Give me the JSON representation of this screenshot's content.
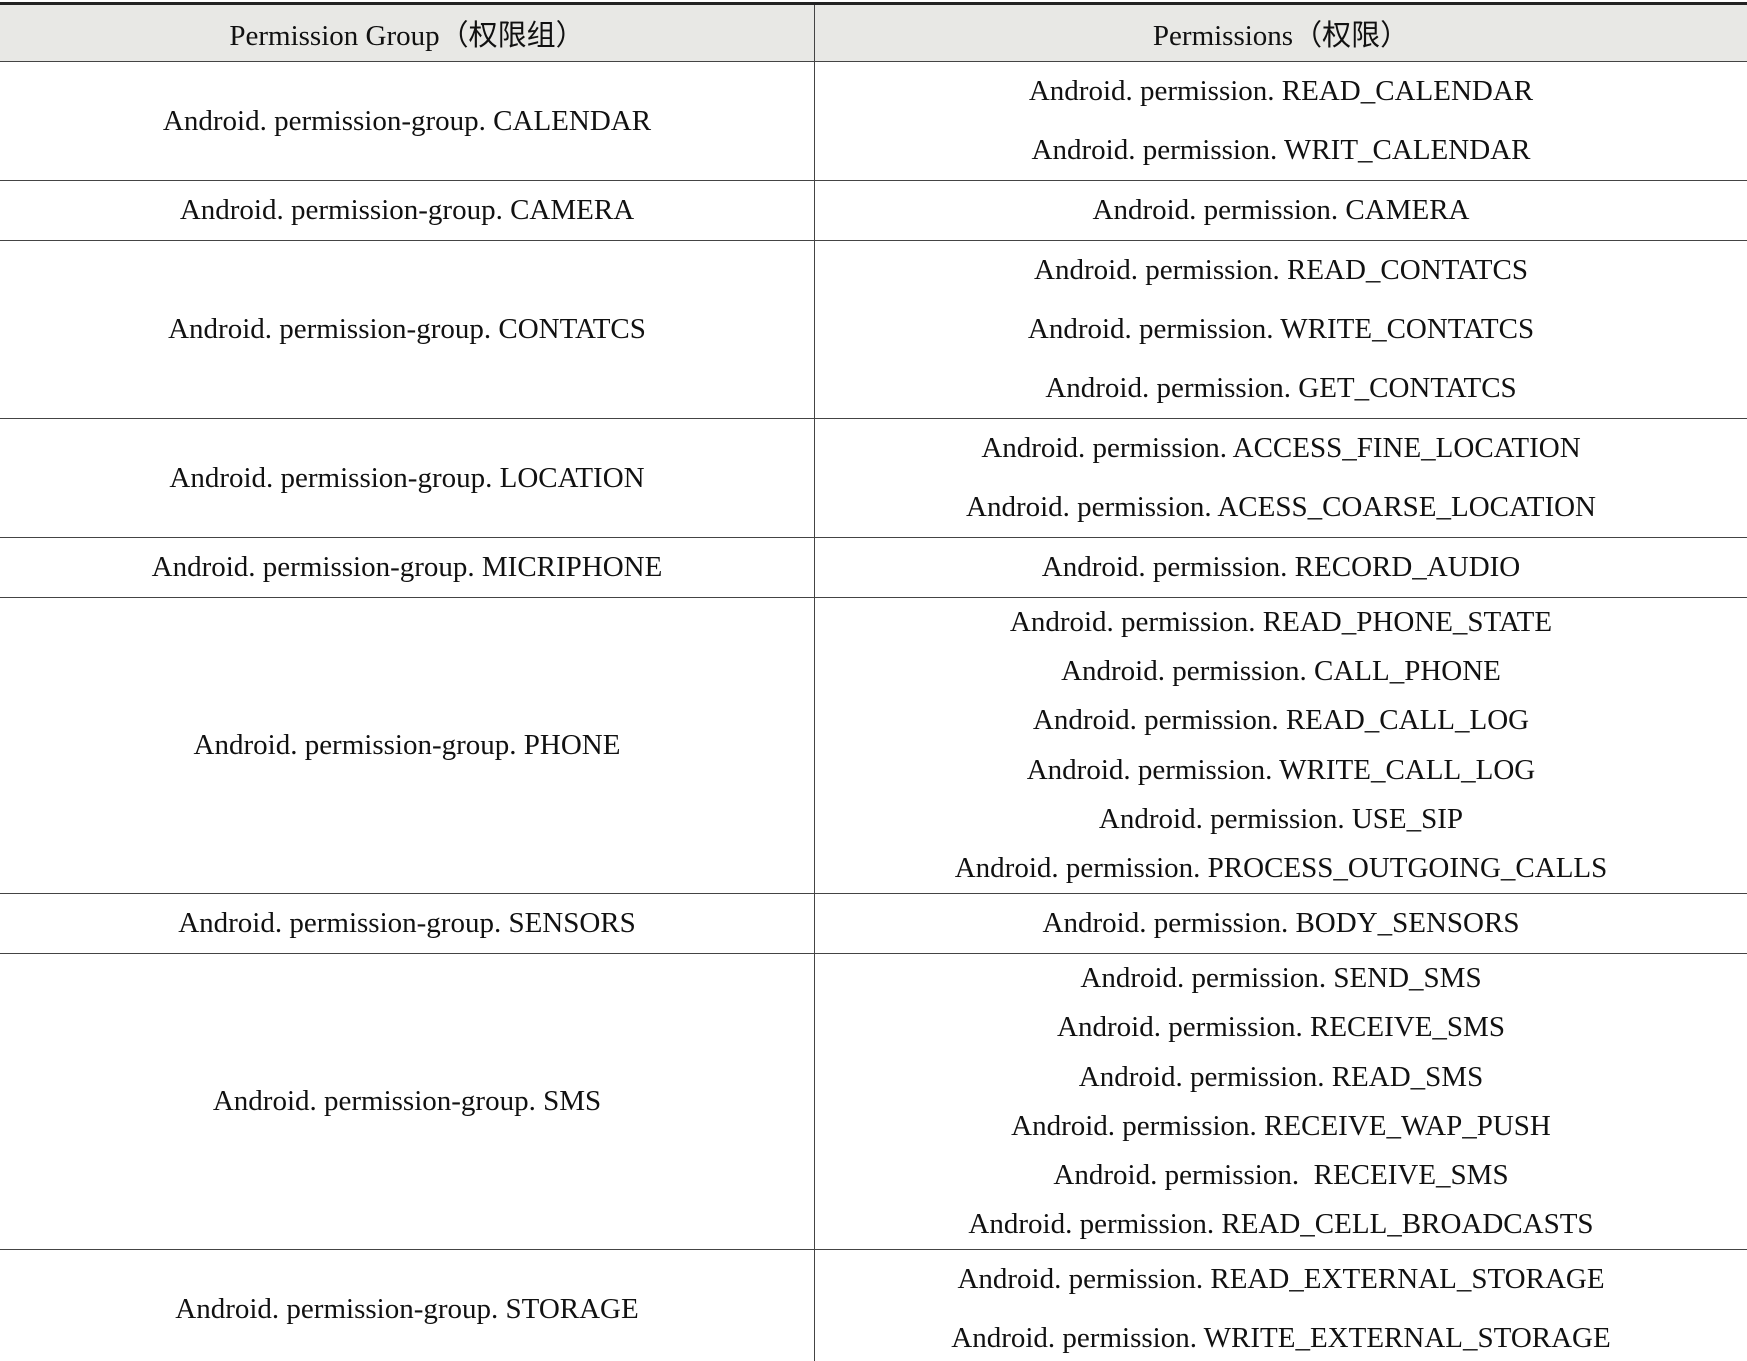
{
  "table": {
    "header": [
      "Permission Group（权限组）",
      "Permissions（权限）"
    ],
    "rows": [
      {
        "group": "Android. permission-group. CALENDAR",
        "permissions": [
          "Android. permission. READ_CALENDAR",
          "Android. permission. WRIT_CALENDAR"
        ]
      },
      {
        "group": "Android. permission-group. CAMERA",
        "permissions": [
          "Android. permission. CAMERA"
        ]
      },
      {
        "group": "Android. permission-group. CONTATCS",
        "permissions": [
          "Android. permission. READ_CONTATCS",
          "Android. permission. WRITE_CONTATCS",
          "Android. permission. GET_CONTATCS"
        ]
      },
      {
        "group": "Android. permission-group. LOCATION",
        "permissions": [
          "Android. permission. ACCESS_FINE_LOCATION",
          "Android. permission. ACESS_COARSE_LOCATION"
        ]
      },
      {
        "group": "Android. permission-group. MICRIPHONE",
        "permissions": [
          "Android. permission. RECORD_AUDIO"
        ]
      },
      {
        "group": "Android. permission-group. PHONE",
        "permissions": [
          "Android. permission. READ_PHONE_STATE",
          "Android. permission. CALL_PHONE",
          "Android. permission. READ_CALL_LOG",
          "Android. permission. WRITE_CALL_LOG",
          "Android. permission. USE_SIP",
          "Android. permission. PROCESS_OUTGOING_CALLS"
        ]
      },
      {
        "group": "Android. permission-group. SENSORS",
        "permissions": [
          "Android. permission. BODY_SENSORS"
        ]
      },
      {
        "group": "Android. permission-group. SMS",
        "permissions": [
          "Android. permission. SEND_SMS",
          "Android. permission. RECEIVE_SMS",
          "Android. permission. READ_SMS",
          "Android. permission. RECEIVE_WAP_PUSH",
          "Android. permission.  RECEIVE_SMS",
          "Android. permission. READ_CELL_BROADCASTS"
        ]
      },
      {
        "group": "Android. permission-group. STORAGE",
        "permissions": [
          "Android. permission. READ_EXTERNAL_STORAGE",
          "Android. permission. WRITE_EXTERNAL_STORAGE"
        ]
      }
    ]
  }
}
